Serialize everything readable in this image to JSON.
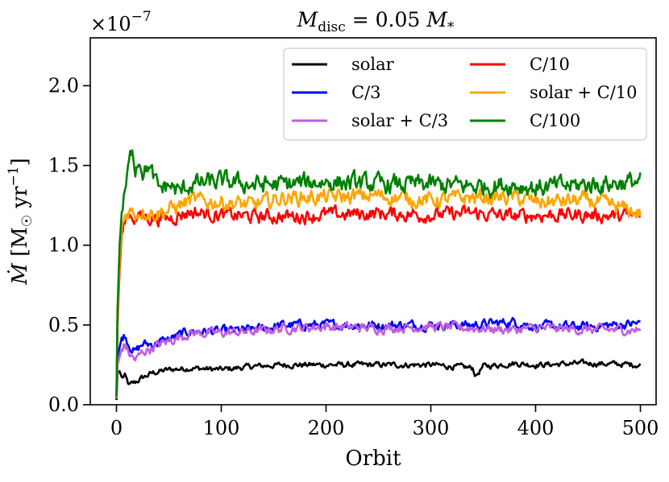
{
  "chart_data": {
    "type": "line",
    "title": "M_disc = 0.05 M_*",
    "title_parts": {
      "m": "M",
      "sub": "disc",
      "eq": " = 0.05 ",
      "m2": "M",
      "sub2": "*"
    },
    "xlabel": "Orbit",
    "ylabel": "Ṁ [M☉ yr⁻¹]",
    "ylabel_parts": {
      "mdot": "Ṁ",
      "open": " [M",
      "sun": "☉",
      "yr": " yr",
      "exp": "−1",
      "close": "]"
    },
    "offset_text": "×10⁻⁷",
    "offset_parts": {
      "times": "×10",
      "exp": "−7"
    },
    "xlim": [
      -25,
      515
    ],
    "ylim": [
      0.0,
      2.3
    ],
    "xticks": [
      "0",
      "100",
      "200",
      "300",
      "400",
      "500"
    ],
    "yticks": [
      "0.0",
      "0.5",
      "1.0",
      "1.5",
      "2.0"
    ],
    "legend_position": "top-right",
    "legend_columns": 2,
    "series": [
      {
        "name": "solar",
        "color": "#000000",
        "x": [
          0,
          1,
          3,
          5,
          8,
          12,
          18,
          25,
          35,
          50,
          70,
          100,
          130,
          160,
          200,
          250,
          300,
          340,
          343,
          350,
          380,
          400,
          450,
          500
        ],
        "values": [
          0.03,
          0.2,
          0.21,
          0.17,
          0.18,
          0.12,
          0.14,
          0.17,
          0.2,
          0.22,
          0.23,
          0.22,
          0.24,
          0.25,
          0.25,
          0.25,
          0.25,
          0.23,
          0.18,
          0.24,
          0.26,
          0.25,
          0.26,
          0.25
        ]
      },
      {
        "name": "C/3",
        "color": "#0000ff",
        "x": [
          0,
          1,
          3,
          5,
          8,
          12,
          18,
          25,
          35,
          50,
          70,
          100,
          130,
          160,
          200,
          250,
          300,
          340,
          380,
          400,
          450,
          500
        ],
        "values": [
          0.05,
          0.3,
          0.36,
          0.42,
          0.44,
          0.38,
          0.33,
          0.38,
          0.38,
          0.41,
          0.46,
          0.46,
          0.47,
          0.5,
          0.5,
          0.5,
          0.5,
          0.5,
          0.52,
          0.49,
          0.49,
          0.51
        ]
      },
      {
        "name": "solar + C/3",
        "color": "#bf5fdf",
        "x": [
          0,
          1,
          3,
          5,
          8,
          12,
          18,
          25,
          35,
          50,
          70,
          100,
          130,
          160,
          200,
          250,
          300,
          340,
          380,
          400,
          450,
          500
        ],
        "values": [
          0.04,
          0.25,
          0.3,
          0.35,
          0.38,
          0.32,
          0.28,
          0.33,
          0.36,
          0.4,
          0.45,
          0.45,
          0.46,
          0.48,
          0.49,
          0.48,
          0.49,
          0.48,
          0.47,
          0.48,
          0.47,
          0.47
        ]
      },
      {
        "name": "C/10",
        "color": "#ff0000",
        "x": [
          0,
          1,
          3,
          5,
          8,
          12,
          18,
          25,
          35,
          50,
          70,
          100,
          130,
          160,
          200,
          250,
          300,
          340,
          380,
          400,
          450,
          500
        ],
        "values": [
          0.05,
          0.5,
          0.85,
          1.05,
          1.15,
          1.2,
          1.17,
          1.18,
          1.17,
          1.17,
          1.21,
          1.19,
          1.18,
          1.18,
          1.19,
          1.2,
          1.19,
          1.2,
          1.18,
          1.19,
          1.19,
          1.18
        ]
      },
      {
        "name": "solar + C/10",
        "color": "#ffa500",
        "x": [
          0,
          1,
          3,
          5,
          8,
          12,
          18,
          25,
          35,
          50,
          70,
          100,
          130,
          160,
          200,
          250,
          300,
          340,
          380,
          400,
          450,
          500
        ],
        "values": [
          0.05,
          0.55,
          0.9,
          1.1,
          1.18,
          1.22,
          1.2,
          1.22,
          1.2,
          1.22,
          1.28,
          1.27,
          1.25,
          1.3,
          1.3,
          1.31,
          1.28,
          1.3,
          1.3,
          1.27,
          1.28,
          1.2
        ]
      },
      {
        "name": "C/100",
        "color": "#008000",
        "x": [
          0,
          1,
          3,
          5,
          8,
          12,
          15,
          18,
          22,
          26,
          30,
          40,
          50,
          60,
          70,
          100,
          130,
          160,
          200,
          250,
          300,
          340,
          380,
          400,
          450,
          500
        ],
        "values": [
          0.05,
          0.6,
          1.0,
          1.2,
          1.32,
          1.5,
          1.62,
          1.5,
          1.55,
          1.45,
          1.5,
          1.35,
          1.38,
          1.33,
          1.38,
          1.4,
          1.38,
          1.38,
          1.4,
          1.38,
          1.38,
          1.37,
          1.38,
          1.36,
          1.38,
          1.4
        ]
      }
    ]
  }
}
